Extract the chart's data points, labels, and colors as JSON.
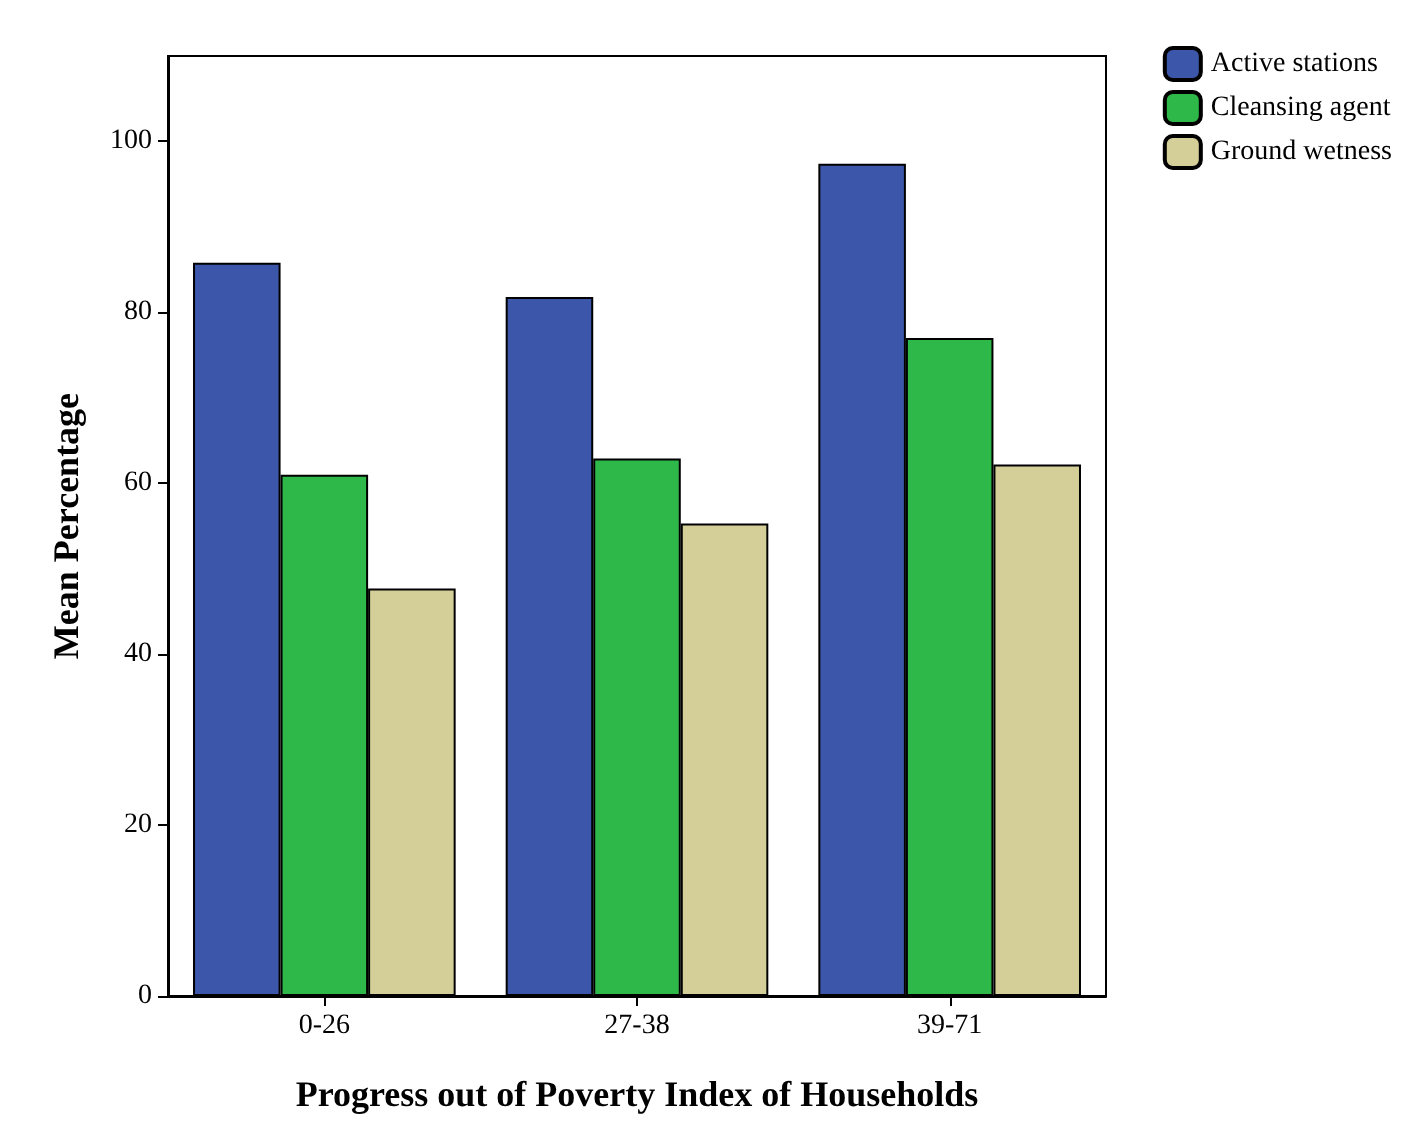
{
  "chart_data": {
    "type": "bar",
    "xlabel": "Progress out of Poverty Index of Households",
    "ylabel": "Mean Percentage",
    "categories": [
      "0-26",
      "27-38",
      "39-71"
    ],
    "series": [
      {
        "name": "Active stations",
        "color": "#3c56a9",
        "values": [
          85.8,
          81.8,
          97.4
        ]
      },
      {
        "name": "Cleansing agent",
        "color": "#2fb84a",
        "values": [
          61.0,
          62.9,
          77.0
        ]
      },
      {
        "name": "Ground wetness",
        "color": "#d4ce98",
        "values": [
          47.7,
          55.3,
          62.2
        ]
      }
    ],
    "ylim": [
      0,
      110
    ],
    "yticks": [
      0,
      20,
      40,
      60,
      80,
      100
    ],
    "grid": false,
    "legend": "top right"
  }
}
